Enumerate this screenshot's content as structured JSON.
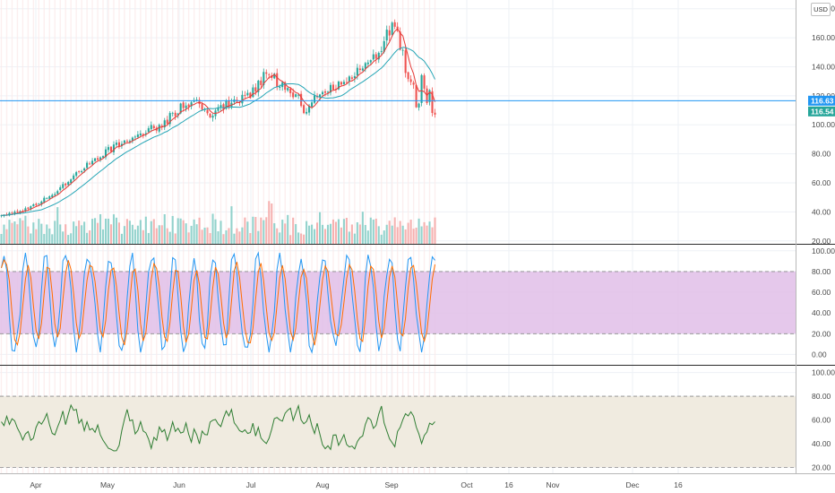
{
  "currency": "USD",
  "chart_data": [
    {
      "type": "candlestick",
      "panel": "price",
      "y_ticks": [
        "180.00",
        "160.00",
        "140.00",
        "120.00",
        "100.00",
        "80.00",
        "60.00",
        "40.00",
        "20.00"
      ],
      "ylim": [
        18,
        186
      ],
      "x_ticks": [
        "Apr",
        "May",
        "Jun",
        "Jul",
        "Aug",
        "Sep",
        "Oct",
        "16",
        "Nov",
        "Dec",
        "16"
      ],
      "price_labels": [
        {
          "value": "116.63",
          "color": "#2196f3"
        },
        {
          "value": "116.54",
          "color": "#26a69a"
        }
      ],
      "horizontal_line": 116.63,
      "anchors": [
        [
          0,
          37
        ],
        [
          20,
          40
        ],
        [
          40,
          45
        ],
        [
          60,
          53
        ],
        [
          80,
          63
        ],
        [
          100,
          74
        ],
        [
          120,
          82
        ],
        [
          140,
          89
        ],
        [
          160,
          95
        ],
        [
          180,
          100
        ],
        [
          200,
          111
        ],
        [
          220,
          118
        ],
        [
          233,
          105
        ],
        [
          240,
          110
        ],
        [
          260,
          116
        ],
        [
          280,
          122
        ],
        [
          300,
          138
        ],
        [
          310,
          129
        ],
        [
          320,
          125
        ],
        [
          335,
          117
        ],
        [
          340,
          109
        ],
        [
          350,
          117
        ],
        [
          360,
          122
        ],
        [
          380,
          128
        ],
        [
          400,
          136
        ],
        [
          420,
          148
        ],
        [
          430,
          160
        ],
        [
          440,
          173
        ],
        [
          445,
          167
        ],
        [
          450,
          145
        ],
        [
          458,
          130
        ],
        [
          465,
          118
        ],
        [
          470,
          125
        ],
        [
          478,
          126
        ],
        [
          485,
          112
        ]
      ],
      "colors": {
        "up": "#26a69a",
        "down": "#ef5350",
        "ma_fast": "#e53935",
        "ma_slow": "#26a6b6"
      }
    },
    {
      "type": "line",
      "panel": "stochastic",
      "y_ticks": [
        "100.00",
        "80.00",
        "60.00",
        "40.00",
        "20.00",
        "0.00"
      ],
      "ylim": [
        -10,
        105
      ],
      "band": [
        20,
        80
      ],
      "colors": {
        "k": "#2196f3",
        "d": "#ff6d00",
        "band": "#e1bee7"
      }
    },
    {
      "type": "line",
      "panel": "rsi",
      "y_ticks": [
        "100.00",
        "80.00",
        "60.00",
        "40.00",
        "20.00"
      ],
      "ylim": [
        15,
        105
      ],
      "band": [
        20,
        80
      ],
      "colors": {
        "line": "#2e7d32",
        "band": "#f0ebe0"
      }
    }
  ]
}
